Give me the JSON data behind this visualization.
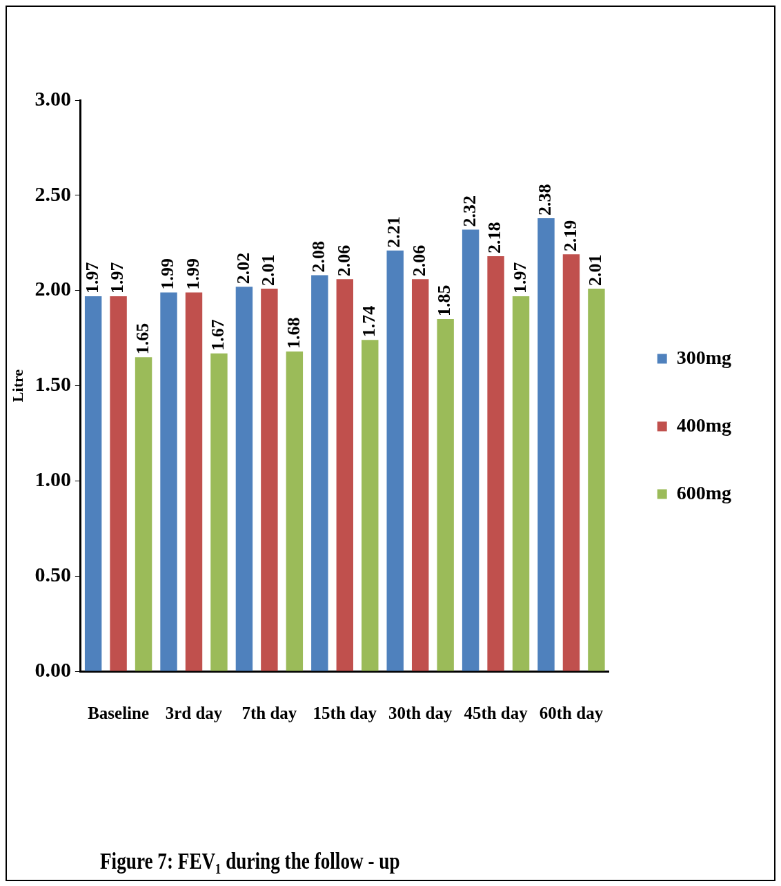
{
  "chart_data": {
    "type": "bar",
    "ylabel": "Litre",
    "categories": [
      "Baseline",
      "3rd day",
      "7th day",
      "15th day",
      "30th day",
      "45th day",
      "60th day"
    ],
    "series": [
      {
        "name": "300mg",
        "color": "#4f81bd",
        "values": [
          1.97,
          1.99,
          2.02,
          2.08,
          2.21,
          2.32,
          2.38
        ]
      },
      {
        "name": "400mg",
        "color": "#c0504d",
        "values": [
          1.97,
          1.99,
          2.01,
          2.06,
          2.06,
          2.18,
          2.19
        ]
      },
      {
        "name": "600mg",
        "color": "#9bbb59",
        "values": [
          1.65,
          1.67,
          1.68,
          1.74,
          1.85,
          1.97,
          2.01
        ]
      }
    ],
    "ylim": [
      0,
      3
    ],
    "yticks": [
      {
        "value": 0,
        "label": "0.00"
      },
      {
        "value": 0.5,
        "label": "0.50"
      },
      {
        "value": 1,
        "label": "1.00"
      },
      {
        "value": 1.5,
        "label": "1.50"
      },
      {
        "value": 2,
        "label": "2.00"
      },
      {
        "value": 2.5,
        "label": "2.50"
      },
      {
        "value": 3,
        "label": "3.00"
      }
    ],
    "data_labels": true,
    "legend": "right",
    "grid": false,
    "annotations": [
      "Figure 7: FEV₁ during the follow - up"
    ]
  }
}
